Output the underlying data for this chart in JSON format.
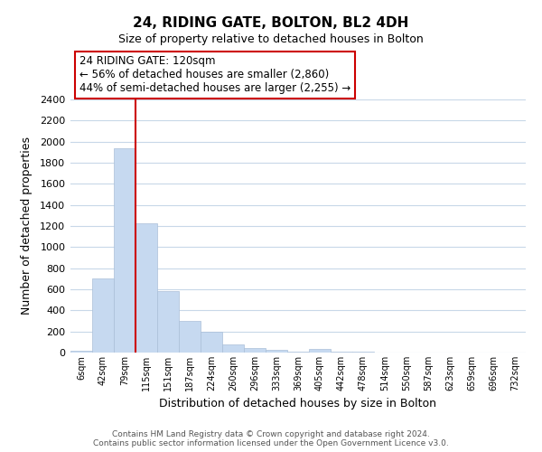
{
  "title": "24, RIDING GATE, BOLTON, BL2 4DH",
  "subtitle": "Size of property relative to detached houses in Bolton",
  "xlabel": "Distribution of detached houses by size in Bolton",
  "ylabel": "Number of detached properties",
  "bar_color": "#c6d9f0",
  "bar_edge_color": "#aabfd8",
  "categories": [
    "6sqm",
    "42sqm",
    "79sqm",
    "115sqm",
    "151sqm",
    "187sqm",
    "224sqm",
    "260sqm",
    "296sqm",
    "333sqm",
    "369sqm",
    "405sqm",
    "442sqm",
    "478sqm",
    "514sqm",
    "550sqm",
    "587sqm",
    "623sqm",
    "659sqm",
    "696sqm",
    "732sqm"
  ],
  "values": [
    15,
    700,
    1940,
    1230,
    580,
    300,
    200,
    80,
    45,
    30,
    10,
    35,
    5,
    10,
    2,
    2,
    1,
    1,
    1,
    0,
    1
  ],
  "ylim": [
    0,
    2400
  ],
  "yticks": [
    0,
    200,
    400,
    600,
    800,
    1000,
    1200,
    1400,
    1600,
    1800,
    2000,
    2200,
    2400
  ],
  "property_line_idx": 3,
  "annotation_title": "24 RIDING GATE: 120sqm",
  "annotation_line1": "← 56% of detached houses are smaller (2,860)",
  "annotation_line2": "44% of semi-detached houses are larger (2,255) →",
  "annotation_box_color": "#ffffff",
  "annotation_box_edge": "#cc0000",
  "property_line_color": "#cc0000",
  "footer_line1": "Contains HM Land Registry data © Crown copyright and database right 2024.",
  "footer_line2": "Contains public sector information licensed under the Open Government Licence v3.0.",
  "background_color": "#ffffff",
  "grid_color": "#c8d8e8"
}
